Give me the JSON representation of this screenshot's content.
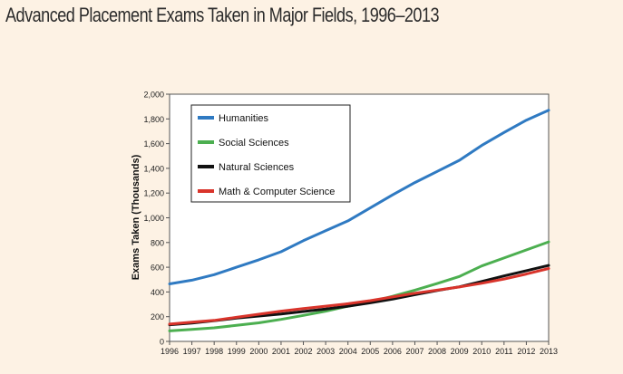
{
  "chart_data": {
    "type": "line",
    "title": "Advanced Placement Exams Taken in Major Fields, 1996–2013",
    "xlabel": "",
    "ylabel": "Exams Taken (Thousands)",
    "ylim": [
      0,
      2000
    ],
    "yticks": [
      "0",
      "200",
      "400",
      "600",
      "800",
      "1,000",
      "1,200",
      "1,400",
      "1,600",
      "1,800",
      "2,000"
    ],
    "x": [
      1996,
      1997,
      1998,
      1999,
      2000,
      2001,
      2002,
      2003,
      2004,
      2005,
      2006,
      2007,
      2008,
      2009,
      2010,
      2011,
      2012,
      2013
    ],
    "xticks": [
      "1996",
      "1997",
      "1998",
      "1999",
      "2000",
      "2001",
      "2002",
      "2003",
      "2004",
      "2005",
      "2006",
      "2007",
      "2008",
      "2009",
      "2010",
      "2011",
      "2012",
      "2013"
    ],
    "legend_position": "top-left",
    "series": [
      {
        "name": "Humanities",
        "color": "#2f7ac2",
        "values": [
          465,
          495,
          540,
          600,
          660,
          725,
          815,
          895,
          975,
          1080,
          1185,
          1285,
          1375,
          1465,
          1585,
          1690,
          1790,
          1870
        ]
      },
      {
        "name": "Social Sciences",
        "color": "#4caf50",
        "values": [
          85,
          97,
          110,
          130,
          150,
          178,
          210,
          245,
          285,
          320,
          365,
          415,
          468,
          525,
          610,
          675,
          740,
          805
        ]
      },
      {
        "name": "Natural Sciences",
        "color": "#111111",
        "values": [
          135,
          148,
          168,
          188,
          205,
          222,
          242,
          262,
          285,
          312,
          342,
          378,
          412,
          442,
          485,
          530,
          572,
          615
        ]
      },
      {
        "name": "Math & Computer Science",
        "color": "#d9342b",
        "values": [
          140,
          155,
          170,
          195,
          220,
          245,
          265,
          285,
          305,
          330,
          360,
          390,
          415,
          440,
          470,
          505,
          545,
          590
        ]
      }
    ]
  }
}
